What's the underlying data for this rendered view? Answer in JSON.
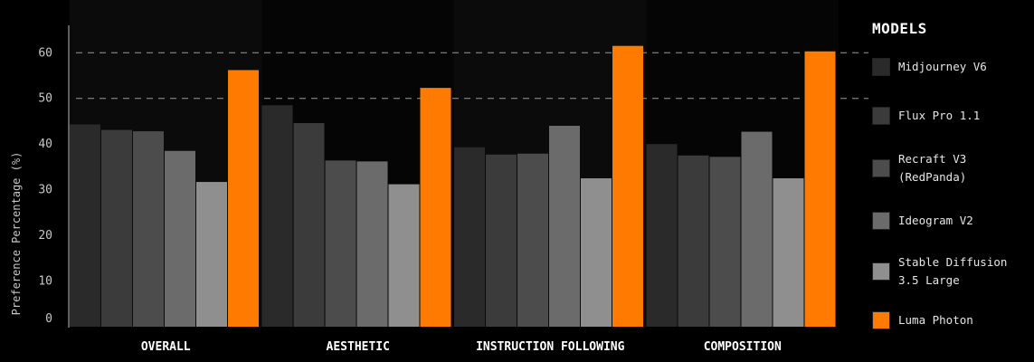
{
  "chart_data": {
    "type": "bar",
    "ylabel": "Preference Percentage (%)",
    "ylim": [
      0,
      66
    ],
    "yticks": [
      0,
      10,
      20,
      30,
      40,
      50,
      60
    ],
    "grid": "dashed at 50 and 60",
    "legend_title": "MODELS",
    "legend_position": "right",
    "categories": [
      "OVERALL",
      "AESTHETIC",
      "INSTRUCTION FOLLOWING",
      "COMPOSITION"
    ],
    "series": [
      {
        "name": "Midjourney V6",
        "color": "#2a2a2a",
        "values": [
          44.3,
          48.5,
          39.3,
          40.0
        ]
      },
      {
        "name": "Flux Pro 1.1",
        "color": "#3b3b3b",
        "values": [
          43.1,
          44.6,
          37.7,
          37.5
        ]
      },
      {
        "name": "Recraft V3\n(RedPanda)",
        "color": "#4c4c4c",
        "values": [
          42.8,
          36.4,
          37.9,
          37.2
        ]
      },
      {
        "name": "Ideogram V2",
        "color": "#6b6b6b",
        "values": [
          38.5,
          36.2,
          44.0,
          42.7
        ]
      },
      {
        "name": "Stable Diffusion\n3.5 Large",
        "color": "#8f8f8f",
        "values": [
          31.7,
          31.2,
          32.5,
          32.5
        ]
      },
      {
        "name": "Luma Photon",
        "color": "#ff7a00",
        "values": [
          56.2,
          52.3,
          61.5,
          60.3
        ]
      }
    ]
  }
}
